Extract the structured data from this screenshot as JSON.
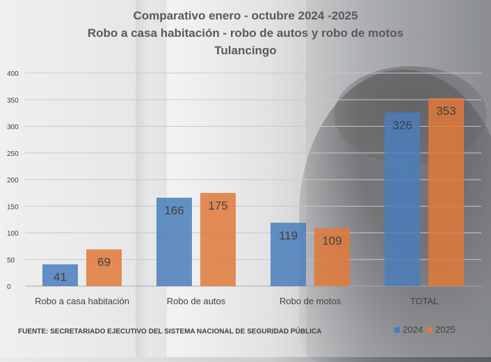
{
  "chart_data": {
    "type": "bar",
    "title_lines": [
      "Comparativo  enero - octubre  2024 -2025",
      "Robo a casa habitación  - robo de autos y robo de motos",
      "Tulancingo"
    ],
    "categories": [
      "Robo a casa habitación",
      "Robo de autos",
      "Robo de motos",
      "TOTAL"
    ],
    "series": [
      {
        "name": "2024",
        "color": "#4a7ebb",
        "values": [
          41,
          166,
          119,
          326
        ]
      },
      {
        "name": "2025",
        "color": "#e0793a",
        "values": [
          69,
          175,
          109,
          353
        ]
      }
    ],
    "ylim": [
      0,
      400
    ],
    "yticks": [
      0,
      50,
      100,
      150,
      200,
      250,
      300,
      350,
      400
    ],
    "grid": true,
    "legend_position": "bottom-right",
    "xlabel": "",
    "ylabel": ""
  },
  "source_note": "FUENTE: SECRETARIADO EJECUTIVO DEL SISTEMA NACIONAL DE SEGURIDAD PÚBLICA"
}
